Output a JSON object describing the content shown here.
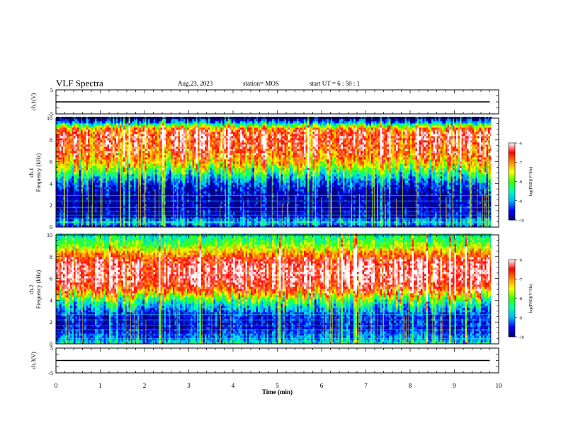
{
  "header": {
    "title": "VLF Spectra",
    "date": "Aug.23, 2023",
    "station": "station= MOS",
    "start_ut": "start  UT  =   6  : 50 : 1"
  },
  "chart_data": [
    {
      "type": "line",
      "panel": "ch1-voltage",
      "ylabel": "ch.1(V)",
      "ylim": [
        -5,
        5
      ],
      "y_tick_labels": [
        "5",
        "-5"
      ],
      "series": [
        {
          "x": [
            0,
            9.8
          ],
          "y": [
            0,
            0
          ]
        }
      ]
    },
    {
      "type": "heatmap",
      "panel": "ch1-spectrogram",
      "ylabel_line1": "ch.1",
      "ylabel_line2": "Frequency (kHz)",
      "ylim": [
        0,
        10
      ],
      "xlim": [
        0,
        10
      ],
      "y_tick_labels": [
        "0",
        "2",
        "4",
        "6",
        "8",
        "10"
      ],
      "colorbar": {
        "label": "log(PSD)(V²/Hz)",
        "range": [
          -10,
          -6
        ],
        "tick_labels": [
          "-6",
          "-7",
          "-8",
          "-9",
          "-10"
        ]
      },
      "profile_khz": [
        {
          "f": 0,
          "v": -9.6
        },
        {
          "f": 0.5,
          "v": -8.8
        },
        {
          "f": 1,
          "v": -9.8
        },
        {
          "f": 2,
          "v": -9.9
        },
        {
          "f": 3,
          "v": -9.9
        },
        {
          "f": 4,
          "v": -9.4
        },
        {
          "f": 4.8,
          "v": -8.6
        },
        {
          "f": 5.5,
          "v": -7.6
        },
        {
          "f": 6.5,
          "v": -6.9
        },
        {
          "f": 7.5,
          "v": -6.6
        },
        {
          "f": 8.5,
          "v": -6.5
        },
        {
          "f": 9,
          "v": -6.9
        },
        {
          "f": 9.4,
          "v": -8.2
        },
        {
          "f": 9.7,
          "v": -9.3
        },
        {
          "f": 10,
          "v": -9.8
        }
      ]
    },
    {
      "type": "heatmap",
      "panel": "ch2-spectrogram",
      "ylabel_line1": "ch.2",
      "ylabel_line2": "Frequency (kHz)",
      "ylim": [
        0,
        10
      ],
      "xlim": [
        0,
        10
      ],
      "y_tick_labels": [
        "0",
        "2",
        "4",
        "6",
        "8",
        "10"
      ],
      "colorbar": {
        "label": "log(PSD)(V²/Hz)",
        "range": [
          -10,
          -6
        ],
        "tick_labels": [
          "-6",
          "-7",
          "-8",
          "-9",
          "-10"
        ]
      },
      "profile_khz": [
        {
          "f": 0,
          "v": -8.6
        },
        {
          "f": 0.5,
          "v": -9.1
        },
        {
          "f": 1.5,
          "v": -9.6
        },
        {
          "f": 2.5,
          "v": -9.5
        },
        {
          "f": 3.5,
          "v": -8.8
        },
        {
          "f": 4.2,
          "v": -7.9
        },
        {
          "f": 5,
          "v": -6.6
        },
        {
          "f": 6,
          "v": -6.2
        },
        {
          "f": 7,
          "v": -6.2
        },
        {
          "f": 7.8,
          "v": -6.5
        },
        {
          "f": 8.4,
          "v": -7.1
        },
        {
          "f": 9,
          "v": -7.8
        },
        {
          "f": 9.5,
          "v": -8.2
        },
        {
          "f": 10,
          "v": -8.5
        }
      ]
    },
    {
      "type": "line",
      "panel": "ch3-voltage",
      "ylabel": "ch.3(V)",
      "ylim": [
        -5,
        5
      ],
      "y_tick_labels": [
        "5",
        "-5"
      ],
      "series": [
        {
          "x": [
            0,
            9.8
          ],
          "y": [
            0,
            0
          ]
        }
      ]
    }
  ],
  "x_axis": {
    "label": "Time  (min)",
    "range": [
      0,
      10
    ],
    "tick_labels": [
      "0",
      "1",
      "2",
      "3",
      "4",
      "5",
      "6",
      "7",
      "8",
      "9",
      "10"
    ]
  },
  "colors": {
    "colormap": [
      "#00007a",
      "#0000ff",
      "#00b4ff",
      "#00ffb0",
      "#3cff00",
      "#ffff00",
      "#ff8c00",
      "#ff0000",
      "#ffffff"
    ]
  }
}
